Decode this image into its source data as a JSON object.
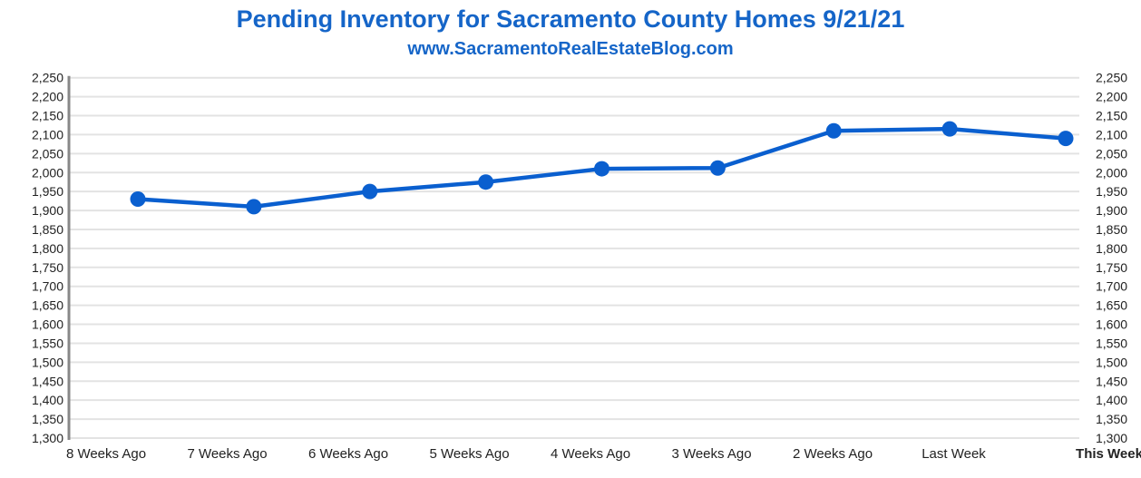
{
  "chart_data": {
    "type": "line",
    "title": "Pending Inventory for Sacramento County Homes 9/21/21",
    "subtitle": "www.SacramentoRealEstateBlog.com",
    "categories": [
      "8 Weeks Ago",
      "7 Weeks Ago",
      "6 Weeks Ago",
      "5 Weeks Ago",
      "4 Weeks Ago",
      "3 Weeks Ago",
      "2 Weeks Ago",
      "Last Week",
      "This Week"
    ],
    "highlight_category": "This Week",
    "series": [
      {
        "name": "Pending Inventory",
        "values": [
          1930,
          1910,
          1950,
          1975,
          2010,
          2012,
          2110,
          2115,
          2090
        ],
        "color": "#0a5fcf"
      }
    ],
    "ylim": [
      1300,
      2250
    ],
    "ytick_step": 50,
    "yticks": [
      "1,300",
      "1,350",
      "1,400",
      "1,450",
      "1,500",
      "1,550",
      "1,600",
      "1,650",
      "1,700",
      "1,750",
      "1,800",
      "1,850",
      "1,900",
      "1,950",
      "2,000",
      "2,050",
      "2,100",
      "2,150",
      "2,200",
      "2,250"
    ],
    "grid": true,
    "xlabel": "",
    "ylabel": "",
    "legend": "none"
  }
}
